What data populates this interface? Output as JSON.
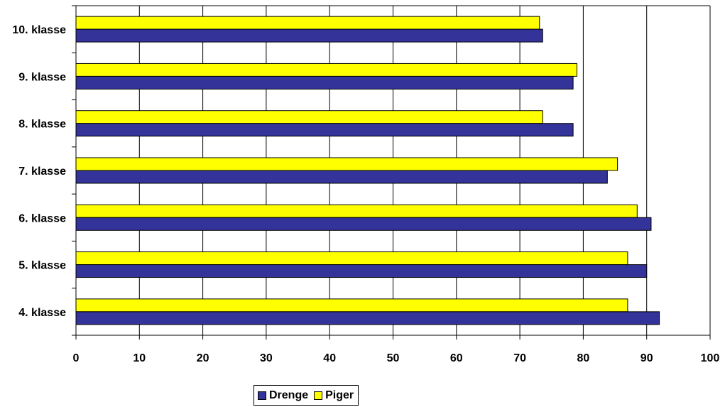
{
  "chart_data": {
    "type": "bar",
    "orientation": "horizontal",
    "categories": [
      "4. klasse",
      "5. klasse",
      "6. klasse",
      "7. klasse",
      "8. klasse",
      "9. klasse",
      "10. klasse"
    ],
    "series": [
      {
        "name": "Drenge",
        "color": "#333399",
        "values": [
          92,
          90,
          90.7,
          83.8,
          78.4,
          78.4,
          73.6
        ]
      },
      {
        "name": "Piger",
        "color": "#ffff00",
        "values": [
          87,
          87,
          88.5,
          85.4,
          73.6,
          79,
          73.1
        ]
      }
    ],
    "xlim": [
      0,
      100
    ],
    "xticks": [
      0,
      10,
      20,
      30,
      40,
      50,
      60,
      70,
      80,
      90,
      100
    ],
    "grid": true,
    "legend_position": "bottom"
  }
}
